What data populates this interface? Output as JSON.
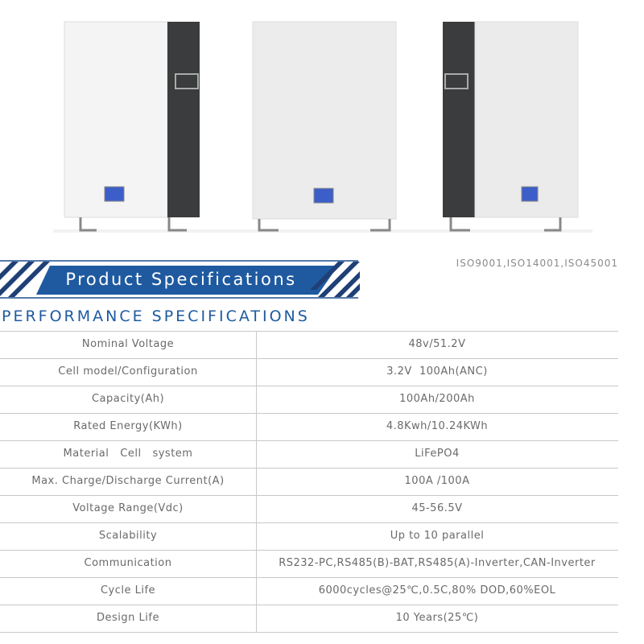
{
  "header": {
    "title": "Product Specifications",
    "certifications": "ISO9001,ISO14001,ISO45001"
  },
  "section": {
    "title": "PERFORMANCE SPECIFICATIONS"
  },
  "table": {
    "rows": [
      [
        "Nominal Voltage",
        "48v/51.2V"
      ],
      [
        "Cell model/Configuration",
        "3.2V  100Ah(ANC)"
      ],
      [
        "Capacity(Ah)",
        "100Ah/200Ah"
      ],
      [
        "Rated Energy(KWh)",
        "4.8Kwh/10.24KWh"
      ],
      [
        "Material   Cell   system",
        "LiFePO4"
      ],
      [
        "Max. Charge/Discharge Current(A)",
        "100A /100A"
      ],
      [
        "Voltage Range(Vdc)",
        "45-56.5V"
      ],
      [
        "Scalability",
        "Up to 10 parallel"
      ],
      [
        "Communication",
        "RS232-PC,RS485(B)-BAT,RS485(A)-Inverter,CAN-Inverter"
      ],
      [
        "Cycle Life",
        "6000cycles@25℃,0.5C,80% DOD,60%EOL"
      ],
      [
        "Design Life",
        "10 Years(25℃)"
      ]
    ]
  }
}
